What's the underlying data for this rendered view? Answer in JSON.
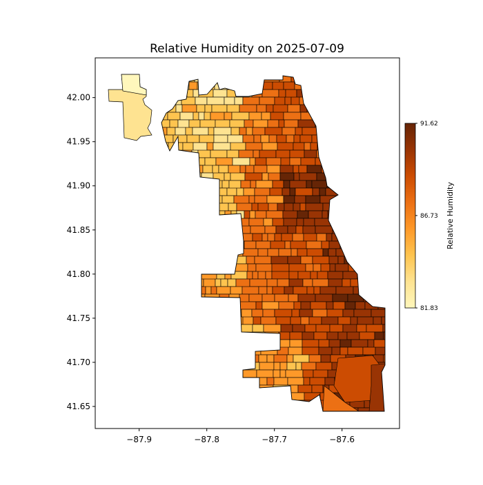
{
  "chart_data": {
    "type": "choropleth",
    "title": "Relative Humidity on 2025-07-09",
    "x_ticks": [
      "−87.9",
      "−87.8",
      "−87.7",
      "−87.6"
    ],
    "x_tick_values": [
      -87.9,
      -87.8,
      -87.7,
      -87.6
    ],
    "y_ticks": [
      "41.65",
      "41.70",
      "41.75",
      "41.80",
      "41.85",
      "41.90",
      "41.95",
      "42.00"
    ],
    "y_tick_values": [
      41.65,
      41.7,
      41.75,
      41.8,
      41.85,
      41.9,
      41.95,
      42.0
    ],
    "xlim": [
      -87.965,
      -87.515
    ],
    "ylim": [
      41.625,
      42.045
    ],
    "colorbar": {
      "label": "Relative Humidity",
      "min": 81.83,
      "max": 91.62,
      "ticks": [
        "91.62",
        "86.73",
        "81.83"
      ],
      "tick_values": [
        91.62,
        86.73,
        81.83
      ],
      "colormap": [
        "#fff7bc",
        "#fee391",
        "#fec44f",
        "#fe9929",
        "#ec7014",
        "#cc4c02",
        "#993404",
        "#662506"
      ]
    },
    "grid": false
  }
}
